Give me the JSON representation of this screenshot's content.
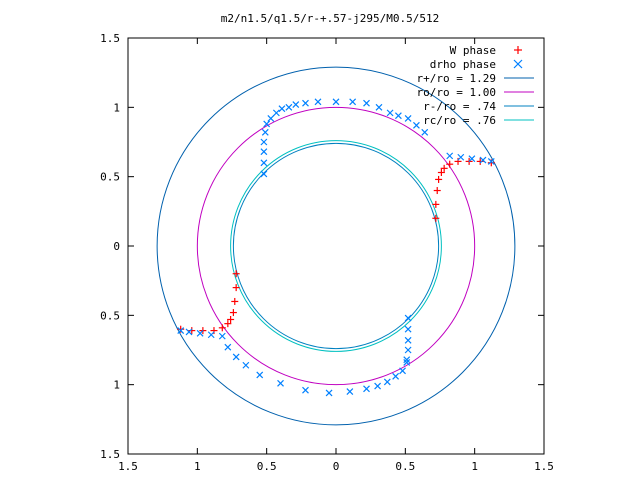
{
  "chart_data": {
    "type": "scatter",
    "title": "m2/n1.5/q1.5/r-+.57-j295/M0.5/512",
    "xlim": [
      -1.5,
      1.5
    ],
    "ylim": [
      -1.5,
      1.5
    ],
    "grid": false,
    "legend_position": "top-right",
    "xtick_values": [
      -1.5,
      -1,
      -0.5,
      0,
      0.5,
      1,
      1.5
    ],
    "xtick_labels": [
      "1.5",
      "1",
      "0.5",
      "0",
      "0.5",
      "1",
      "1.5"
    ],
    "ytick_values": [
      1.5,
      1,
      0.5,
      0,
      -0.5,
      -1,
      -1.5
    ],
    "ytick_labels": [
      "1.5",
      "1",
      "0.5",
      "0",
      "0.5",
      "1",
      "1.5"
    ],
    "series": [
      {
        "name": "W phase",
        "marker": "plus",
        "color": "#ff0000",
        "points": [
          [
            0.72,
            0.2
          ],
          [
            0.72,
            0.3
          ],
          [
            0.73,
            0.4
          ],
          [
            0.74,
            0.48
          ],
          [
            0.76,
            0.53
          ],
          [
            0.78,
            0.56
          ],
          [
            0.82,
            0.59
          ],
          [
            0.88,
            0.61
          ],
          [
            0.96,
            0.61
          ],
          [
            1.04,
            0.61
          ],
          [
            1.12,
            0.6
          ],
          [
            -0.72,
            -0.2
          ],
          [
            -0.72,
            -0.3
          ],
          [
            -0.73,
            -0.4
          ],
          [
            -0.74,
            -0.48
          ],
          [
            -0.76,
            -0.53
          ],
          [
            -0.78,
            -0.56
          ],
          [
            -0.82,
            -0.59
          ],
          [
            -0.88,
            -0.61
          ],
          [
            -0.96,
            -0.61
          ],
          [
            -1.04,
            -0.61
          ],
          [
            -1.12,
            -0.6
          ]
        ]
      },
      {
        "name": "drho phase",
        "marker": "cross",
        "color": "#0080ff",
        "points": [
          [
            0.82,
            0.65
          ],
          [
            0.9,
            0.64
          ],
          [
            0.98,
            0.63
          ],
          [
            1.06,
            0.62
          ],
          [
            1.12,
            0.61
          ],
          [
            -0.52,
            0.52
          ],
          [
            -0.52,
            0.6
          ],
          [
            -0.52,
            0.68
          ],
          [
            -0.52,
            0.75
          ],
          [
            -0.51,
            0.82
          ],
          [
            -0.5,
            0.88
          ],
          [
            -0.47,
            0.92
          ],
          [
            -0.43,
            0.96
          ],
          [
            -0.39,
            0.99
          ],
          [
            -0.34,
            1.0
          ],
          [
            -0.29,
            1.02
          ],
          [
            -0.22,
            1.03
          ],
          [
            -0.13,
            1.04
          ],
          [
            0.0,
            1.04
          ],
          [
            0.12,
            1.04
          ],
          [
            0.22,
            1.03
          ],
          [
            0.31,
            1.0
          ],
          [
            0.39,
            0.96
          ],
          [
            0.45,
            0.94
          ],
          [
            0.52,
            0.92
          ],
          [
            0.58,
            0.87
          ],
          [
            0.64,
            0.82
          ],
          [
            -0.82,
            -0.65
          ],
          [
            -0.9,
            -0.64
          ],
          [
            -0.98,
            -0.63
          ],
          [
            -1.06,
            -0.62
          ],
          [
            -1.12,
            -0.61
          ],
          [
            -0.78,
            -0.73
          ],
          [
            -0.72,
            -0.8
          ],
          [
            -0.65,
            -0.86
          ],
          [
            -0.55,
            -0.93
          ],
          [
            -0.4,
            -0.99
          ],
          [
            -0.22,
            -1.04
          ],
          [
            -0.05,
            -1.06
          ],
          [
            0.1,
            -1.05
          ],
          [
            0.22,
            -1.03
          ],
          [
            0.3,
            -1.01
          ],
          [
            0.37,
            -0.98
          ],
          [
            0.43,
            -0.94
          ],
          [
            0.48,
            -0.9
          ],
          [
            0.51,
            -0.84
          ],
          [
            0.52,
            -0.52
          ],
          [
            0.52,
            -0.6
          ],
          [
            0.52,
            -0.68
          ],
          [
            0.52,
            -0.75
          ],
          [
            0.51,
            -0.82
          ]
        ]
      },
      {
        "name": "r+/ro = 1.29",
        "marker": "circle",
        "color": "#0060ad",
        "radius": 1.29
      },
      {
        "name": "ro/ro = 1.00",
        "marker": "circle",
        "color": "#c000c0",
        "radius": 1.0
      },
      {
        "name": "r-/ro = .74",
        "marker": "circle",
        "color": "#0080c0",
        "radius": 0.74
      },
      {
        "name": "rc/ro = .76",
        "marker": "circle",
        "color": "#00c0c0",
        "radius": 0.76
      }
    ]
  }
}
